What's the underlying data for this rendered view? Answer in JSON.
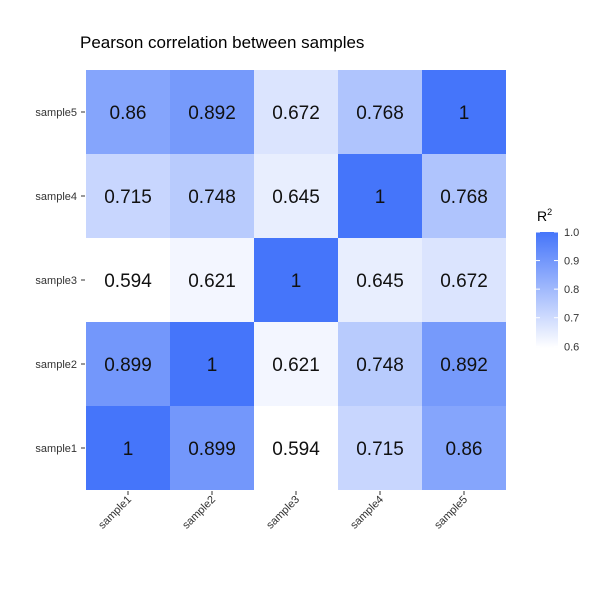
{
  "chart_data": {
    "type": "heatmap",
    "title": "Pearson correlation between samples",
    "x_categories": [
      "sample1",
      "sample2",
      "sample3",
      "sample4",
      "sample5"
    ],
    "y_categories": [
      "sample1",
      "sample2",
      "sample3",
      "sample4",
      "sample5"
    ],
    "values": [
      [
        1,
        0.899,
        0.594,
        0.715,
        0.86
      ],
      [
        0.899,
        1,
        0.621,
        0.748,
        0.892
      ],
      [
        0.594,
        0.621,
        1,
        0.645,
        0.672
      ],
      [
        0.715,
        0.748,
        0.645,
        1,
        0.768
      ],
      [
        0.86,
        0.892,
        0.672,
        0.768,
        1
      ]
    ],
    "value_labels": [
      [
        "1",
        "0.899",
        "0.594",
        "0.715",
        "0.86"
      ],
      [
        "0.899",
        "1",
        "0.621",
        "0.748",
        "0.892"
      ],
      [
        "0.594",
        "0.621",
        "1",
        "0.645",
        "0.672"
      ],
      [
        "0.715",
        "0.748",
        "0.645",
        "1",
        "0.768"
      ],
      [
        "0.86",
        "0.892",
        "0.672",
        "0.768",
        "1"
      ]
    ],
    "legend": {
      "title": "R",
      "title_superscript": "2",
      "placement": "right",
      "ticks": [
        1.0,
        0.9,
        0.8,
        0.7,
        0.6
      ],
      "tick_labels": [
        "1.0",
        "0.9",
        "0.8",
        "0.7",
        "0.6"
      ],
      "range": [
        0.594,
        1
      ]
    },
    "color_low": "#ffffff",
    "color_high": "#4575fa",
    "grid": false
  }
}
